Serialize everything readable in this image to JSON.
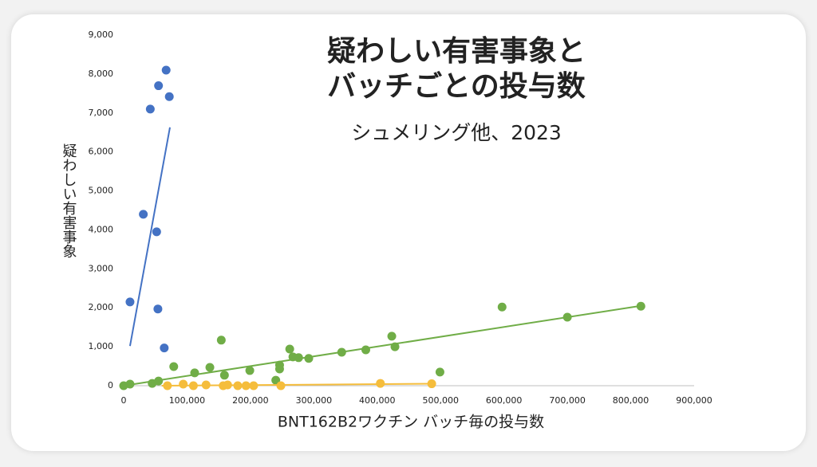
{
  "chart_data": {
    "type": "scatter",
    "title": [
      "疑わしい有害事象と",
      "バッチごとの投与数"
    ],
    "subtitle": "シュメリング他、2023",
    "x_label": "BNT162B2ワクチン バッチ毎の投与数",
    "y_label": "疑わしい有害事象",
    "xlim": [
      0,
      900000
    ],
    "xticks": [
      0,
      {
        "value": 100000,
        "label": "100,000"
      },
      {
        "value": 200000,
        "label": "200,000"
      },
      {
        "value": 300000,
        "label": "300,000"
      },
      {
        "value": 400000,
        "label": "400,000"
      },
      {
        "value": 500000,
        "label": "500,000"
      },
      {
        "value": 600000,
        "label": "600,000"
      },
      {
        "value": 700000,
        "label": "700,000"
      },
      {
        "value": 800000,
        "label": "800,000"
      },
      {
        "value": 900000,
        "label": "900,000"
      }
    ],
    "ylim": [
      0,
      9000
    ],
    "yticks": [
      0,
      {
        "value": 1000,
        "label": "1,000"
      },
      {
        "value": 2000,
        "label": "2,000"
      },
      {
        "value": 3000,
        "label": "3,000"
      },
      {
        "value": 4000,
        "label": "4,000"
      },
      {
        "value": 5000,
        "label": "5,000"
      },
      {
        "value": 6000,
        "label": "6,000"
      },
      {
        "value": 7000,
        "label": "7,000"
      },
      {
        "value": 8000,
        "label": "8,000"
      },
      {
        "value": 9000,
        "label": "9,000"
      }
    ],
    "series": [
      {
        "color": "#4472c4",
        "x": [
          10000,
          31000,
          42000,
          52000,
          55000,
          54000,
          67000,
          72000,
          64000
        ],
        "values": [
          2150,
          4400,
          7100,
          3950,
          7700,
          1970,
          8100,
          7420,
          970
        ],
        "trendline": {
          "x": [
            10000,
            73000
          ],
          "values": [
            1020,
            6630
          ]
        }
      },
      {
        "color": "#70ad47",
        "x": [
          0,
          10000,
          45000,
          55000,
          79000,
          112000,
          136000,
          154000,
          159000,
          199000,
          240000,
          246000,
          246000,
          262000,
          267000,
          276000,
          292000,
          344000,
          382000,
          423000,
          428000,
          499000,
          597000,
          700000,
          816000
        ],
        "values": [
          0,
          40,
          60,
          120,
          490,
          330,
          470,
          1170,
          270,
          390,
          140,
          430,
          530,
          940,
          740,
          720,
          700,
          860,
          920,
          1270,
          1000,
          350,
          2020,
          1760,
          2040
        ],
        "trendline": {
          "x": [
            0,
            816000
          ],
          "values": [
            0,
            2050
          ]
        }
      },
      {
        "color": "#f5bd3c",
        "x": [
          69000,
          94000,
          110000,
          130000,
          157000,
          164000,
          180000,
          193000,
          205000,
          248000,
          405000,
          486000
        ],
        "values": [
          0,
          40,
          0,
          20,
          0,
          20,
          0,
          0,
          0,
          0,
          60,
          50
        ],
        "trendline": {
          "x": [
            60000,
            486000
          ],
          "values": [
            0,
            50
          ]
        }
      }
    ]
  }
}
